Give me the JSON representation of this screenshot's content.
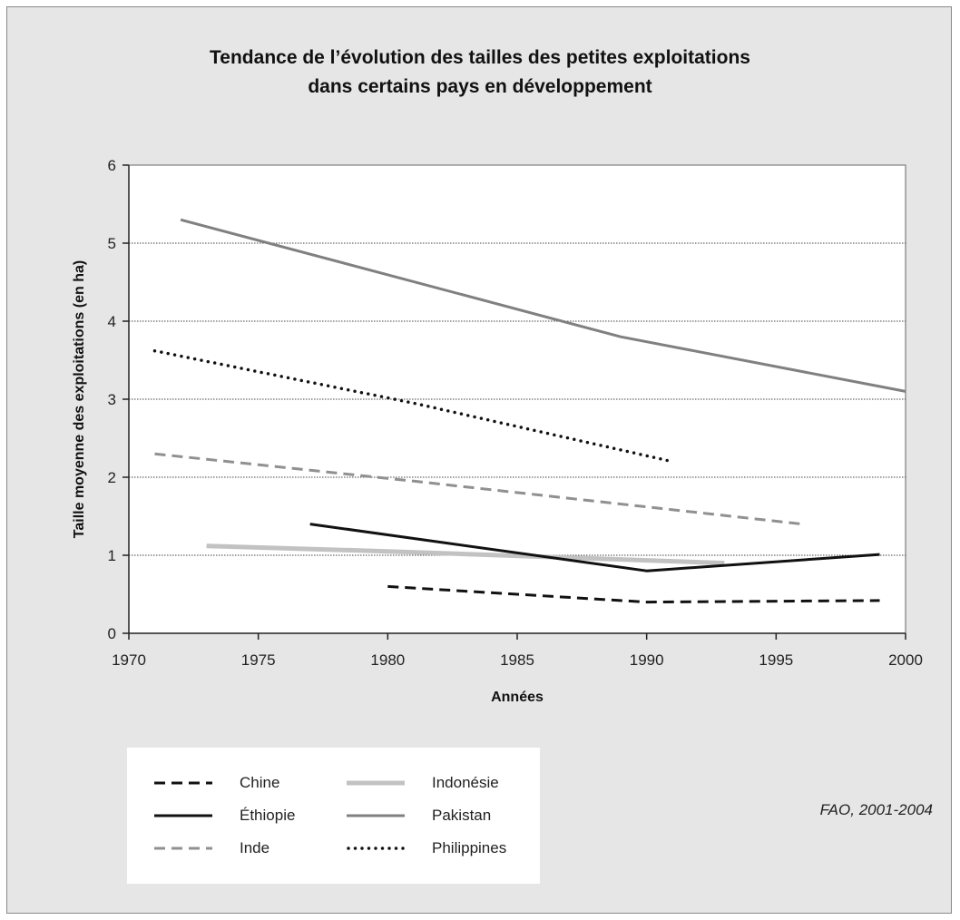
{
  "chart_data": {
    "type": "line",
    "title_lines": [
      "Tendance de l’évolution des tailles des petites exploitations",
      "dans certains pays en développement"
    ],
    "xlabel": "Années",
    "ylabel": "Taille moyenne des exploitations (en ha)",
    "xlim": [
      1970,
      2000
    ],
    "ylim": [
      0,
      6
    ],
    "x_ticks": [
      1970,
      1975,
      1980,
      1985,
      1990,
      1995,
      2000
    ],
    "y_ticks": [
      0,
      1,
      2,
      3,
      4,
      5,
      6
    ],
    "grid": "horizontal dotted",
    "legend_position": "bottom-left",
    "series": [
      {
        "name": "Chine",
        "color": "#111111",
        "dash": "dashed",
        "points": [
          [
            1980,
            0.6
          ],
          [
            1990,
            0.4
          ],
          [
            1999,
            0.42
          ]
        ]
      },
      {
        "name": "Indonésie",
        "color": "#c2c2c2",
        "dash": "solid",
        "points": [
          [
            1973,
            1.12
          ],
          [
            1980,
            1.05
          ],
          [
            1993,
            0.9
          ]
        ]
      },
      {
        "name": "Éthiopie",
        "color": "#111111",
        "dash": "solid",
        "points": [
          [
            1977,
            1.4
          ],
          [
            1990,
            0.8
          ],
          [
            1999,
            1.01
          ]
        ]
      },
      {
        "name": "Pakistan",
        "color": "#808080",
        "dash": "solid",
        "points": [
          [
            1972,
            5.3
          ],
          [
            1989,
            3.8
          ],
          [
            2000,
            3.1
          ]
        ]
      },
      {
        "name": "Inde",
        "color": "#909090",
        "dash": "dashed",
        "points": [
          [
            1971,
            2.3
          ],
          [
            1981,
            1.95
          ],
          [
            1996,
            1.4
          ]
        ]
      },
      {
        "name": "Philippines",
        "color": "#111111",
        "dash": "dotted",
        "points": [
          [
            1971,
            3.62
          ],
          [
            1981,
            2.95
          ],
          [
            1991,
            2.2
          ]
        ]
      }
    ],
    "source": "FAO, 2001-2004"
  }
}
